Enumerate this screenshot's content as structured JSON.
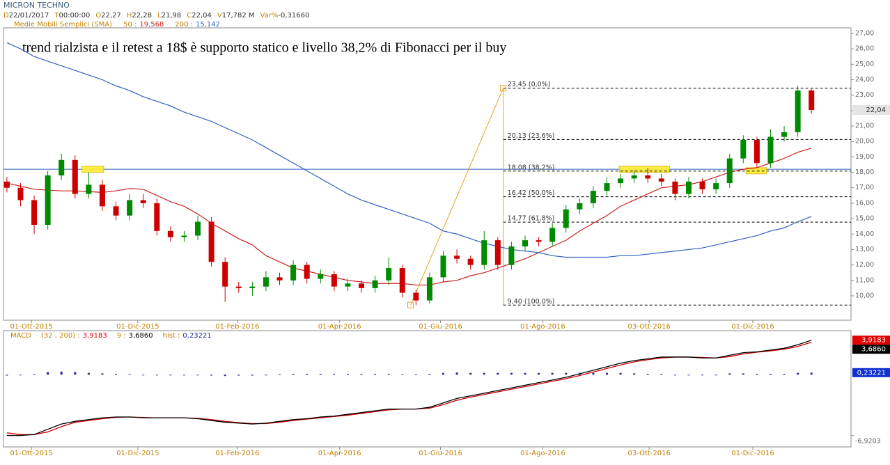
{
  "chart_data": [
    {
      "type": "candlestick",
      "title": "MICRON TECHNO",
      "info": [
        {
          "key": "D",
          "value": "22/01/2017"
        },
        {
          "key": "T",
          "value": "00:00:00"
        },
        {
          "key": "O",
          "value": "22,27"
        },
        {
          "key": "H",
          "value": "22,28"
        },
        {
          "key": "L",
          "value": "21,98"
        },
        {
          "key": "C",
          "value": "22,04"
        },
        {
          "key": "V",
          "value": "17,782 M"
        },
        {
          "key": "Var%",
          "value": "-0,31660"
        }
      ],
      "sma_label": "Medie Mobili Semplici (SMA)",
      "annotation": "trend rialzista e il retest a 18$ è supporto statico e livello 38,2% di Fibonacci per il buy",
      "up_color": "#008a00",
      "down_color": "#cc0000",
      "open": [
        17.4,
        17.0,
        16.2,
        14.6,
        17.8,
        18.8,
        16.6,
        17.2,
        15.8,
        15.2,
        16.2,
        16.0,
        14.2,
        13.8,
        13.9,
        14.8,
        12.2,
        10.6,
        10.5,
        10.6,
        11.2,
        11.0,
        12.0,
        11.1,
        11.4,
        10.6,
        10.8,
        10.5,
        11.0,
        11.8,
        10.2,
        9.7,
        11.2,
        12.6,
        12.4,
        12.0,
        13.6,
        12.0,
        13.2,
        13.6,
        13.5,
        14.4,
        15.6,
        16.0,
        16.8,
        17.3,
        17.6,
        17.8,
        17.6,
        17.4,
        16.6,
        17.4,
        16.9,
        17.3,
        18.9,
        20.1,
        18.6,
        20.3,
        20.6,
        23.3
      ],
      "high": [
        17.7,
        17.3,
        16.5,
        18.1,
        19.2,
        19.1,
        18.0,
        17.5,
        16.1,
        16.6,
        16.6,
        16.3,
        14.5,
        14.2,
        15.2,
        15.1,
        12.5,
        10.9,
        10.9,
        11.6,
        11.5,
        12.3,
        12.2,
        11.7,
        11.6,
        11.1,
        11.0,
        11.3,
        12.5,
        12.0,
        10.4,
        11.5,
        12.9,
        13.0,
        12.6,
        14.2,
        13.8,
        13.5,
        13.9,
        13.8,
        14.7,
        15.9,
        16.3,
        17.1,
        17.7,
        17.9,
        18.1,
        18.3,
        17.9,
        17.6,
        17.7,
        17.6,
        17.6,
        19.2,
        20.4,
        20.3,
        20.8,
        21.0,
        23.6,
        23.4
      ],
      "low": [
        16.7,
        15.8,
        14.0,
        14.3,
        17.5,
        16.3,
        16.3,
        15.5,
        14.9,
        14.9,
        15.7,
        13.9,
        13.5,
        13.5,
        13.6,
        11.9,
        9.6,
        10.2,
        10.0,
        10.3,
        10.7,
        10.7,
        10.8,
        10.8,
        10.3,
        10.3,
        10.2,
        10.2,
        10.7,
        9.9,
        9.4,
        9.5,
        10.9,
        12.1,
        11.7,
        11.7,
        11.7,
        11.7,
        12.9,
        13.2,
        13.2,
        14.1,
        15.3,
        15.7,
        16.5,
        17.0,
        17.3,
        17.3,
        17.1,
        16.2,
        16.3,
        16.6,
        16.6,
        17.0,
        18.6,
        18.3,
        18.3,
        20.0,
        20.3,
        21.8
      ],
      "close": [
        17.0,
        16.2,
        14.6,
        17.8,
        18.8,
        16.6,
        17.2,
        15.8,
        15.2,
        16.2,
        16.0,
        14.2,
        13.8,
        13.9,
        14.8,
        12.2,
        10.6,
        10.5,
        10.6,
        11.2,
        11.0,
        12.0,
        11.1,
        11.4,
        10.6,
        10.8,
        10.5,
        11.0,
        11.8,
        10.2,
        9.7,
        11.2,
        12.6,
        12.4,
        12.0,
        13.6,
        12.0,
        13.2,
        13.6,
        13.5,
        14.4,
        15.6,
        16.0,
        16.8,
        17.3,
        17.6,
        17.8,
        17.6,
        17.4,
        16.6,
        17.4,
        16.9,
        17.3,
        18.9,
        20.1,
        18.6,
        20.3,
        20.6,
        23.3,
        22.04
      ],
      "last_price": {
        "value": 22.04,
        "label": "22,04"
      },
      "series": [
        {
          "name": "50 :",
          "color": "#cc2020",
          "value_label": "19,568",
          "values": [
            17.3,
            17.1,
            16.9,
            16.85,
            16.8,
            16.8,
            16.75,
            16.7,
            16.8,
            16.95,
            16.9,
            16.5,
            16.1,
            15.8,
            15.3,
            14.7,
            14.2,
            13.7,
            13.3,
            12.6,
            12.2,
            11.8,
            11.6,
            11.4,
            11.2,
            11.0,
            10.9,
            10.8,
            10.8,
            10.8,
            10.7,
            10.7,
            10.9,
            11.0,
            11.3,
            11.5,
            11.8,
            12.1,
            12.4,
            12.8,
            13.2,
            13.6,
            14.2,
            14.7,
            15.2,
            15.8,
            16.2,
            16.6,
            17.0,
            17.1,
            17.2,
            17.4,
            17.7,
            18.0,
            18.2,
            18.3,
            18.6,
            18.9,
            19.3,
            19.568
          ]
        },
        {
          "name": "200 :",
          "color": "#3060c0",
          "value_label": "15,142",
          "values": [
            26.4,
            26.0,
            25.5,
            25.2,
            24.9,
            24.6,
            24.3,
            24.0,
            23.6,
            23.3,
            22.9,
            22.6,
            22.3,
            21.9,
            21.6,
            21.3,
            20.9,
            20.5,
            20.1,
            19.6,
            19.1,
            18.6,
            18.1,
            17.6,
            17.1,
            16.6,
            16.2,
            15.9,
            15.6,
            15.3,
            15.0,
            14.7,
            14.2,
            14.0,
            13.7,
            13.4,
            13.2,
            13.0,
            12.9,
            12.8,
            12.6,
            12.5,
            12.5,
            12.5,
            12.5,
            12.6,
            12.6,
            12.7,
            12.8,
            12.9,
            13.0,
            13.1,
            13.3,
            13.5,
            13.7,
            13.9,
            14.2,
            14.4,
            14.8,
            15.142
          ]
        }
      ],
      "support": 18.2,
      "support_color": "#3060c0",
      "highlights": [
        {
          "x": [
            5.5,
            7.1
          ],
          "y": [
            18.0,
            18.4
          ]
        },
        {
          "x": [
            44.9,
            48.6
          ],
          "y": [
            18.0,
            18.4
          ]
        },
        {
          "x": [
            54.2,
            55.7
          ],
          "y": [
            17.9,
            18.3
          ]
        }
      ],
      "fibonacci": {
        "x": [
          29.6,
          36.4
        ],
        "levels": [
          {
            "value": 23.45,
            "label": "23,45 (0,0%)"
          },
          {
            "value": 20.13,
            "label": "20,13 (23,6%)"
          },
          {
            "value": 18.08,
            "label": "18,08 (38,2%)"
          },
          {
            "value": 16.42,
            "label": "16,42 (50,0%)"
          },
          {
            "value": 14.77,
            "label": "14,77 (61,8%)"
          },
          {
            "value": 9.4,
            "label": "9,40 (100,0%)"
          }
        ]
      },
      "xlim": [
        -0.25,
        61.9
      ],
      "xticks": [
        {
          "value": 1.8,
          "label": "01-Ott-2015"
        },
        {
          "value": 9.6,
          "label": "01-Dic-2015"
        },
        {
          "value": 16.9,
          "label": "01-Feb-2016"
        },
        {
          "value": 24.4,
          "label": "01-Apr-2016"
        },
        {
          "value": 31.8,
          "label": "01-Giu-2016"
        },
        {
          "value": 39.3,
          "label": "01-Ago-2016"
        },
        {
          "value": 47.1,
          "label": "03-Ott-2016"
        },
        {
          "value": 54.7,
          "label": "01-Dic-2016"
        }
      ],
      "ylim": [
        8.42,
        27.36
      ],
      "yticks": [
        {
          "value": 10,
          "label": "10,00"
        },
        {
          "value": 11,
          "label": "11,00"
        },
        {
          "value": 12,
          "label": "12,00"
        },
        {
          "value": 13,
          "label": "13,00"
        },
        {
          "value": 14,
          "label": "14,00"
        },
        {
          "value": 15,
          "label": "15,00"
        },
        {
          "value": 16,
          "label": "16,00"
        },
        {
          "value": 17,
          "label": "17,00"
        },
        {
          "value": 18,
          "label": "18,00"
        },
        {
          "value": 19,
          "label": "19,00"
        },
        {
          "value": 20,
          "label": "20,00"
        },
        {
          "value": 21,
          "label": "21,00"
        },
        {
          "value": 22,
          "label": "22,00"
        },
        {
          "value": 23,
          "label": "23,00"
        },
        {
          "value": 24,
          "label": "24,00"
        },
        {
          "value": 25,
          "label": "25,00"
        },
        {
          "value": 26,
          "label": "26,00"
        },
        {
          "value": 27,
          "label": "27,00"
        }
      ]
    },
    {
      "type": "macd",
      "title": "MACD",
      "series": [
        {
          "name": "(32 , 200) :",
          "color": "#000000",
          "value_label": "3,9183",
          "label_color": "#e00000",
          "values": [
            -6.9,
            -6.9,
            -6.8,
            -6.2,
            -5.6,
            -5.3,
            -5.1,
            -4.9,
            -4.8,
            -4.8,
            -4.9,
            -4.9,
            -4.9,
            -4.9,
            -5.0,
            -5.2,
            -5.4,
            -5.5,
            -5.6,
            -5.5,
            -5.3,
            -5.1,
            -5.0,
            -4.8,
            -4.7,
            -4.5,
            -4.3,
            -4.1,
            -3.9,
            -3.9,
            -3.9,
            -3.7,
            -3.2,
            -2.7,
            -2.4,
            -2.1,
            -1.8,
            -1.5,
            -1.2,
            -0.9,
            -0.6,
            -0.3,
            0.1,
            0.5,
            0.9,
            1.3,
            1.6,
            1.8,
            2.0,
            2.0,
            2.0,
            1.9,
            1.9,
            2.2,
            2.5,
            2.6,
            2.8,
            3.0,
            3.4,
            3.9183
          ]
        },
        {
          "name": "9 :",
          "color": "#cc0000",
          "value_label": "3,6860",
          "label_color": "#000000",
          "values": [
            -6.6,
            -6.8,
            -6.8,
            -6.5,
            -5.9,
            -5.4,
            -5.2,
            -5.0,
            -4.85,
            -4.8,
            -4.85,
            -4.9,
            -4.9,
            -4.9,
            -4.95,
            -5.1,
            -5.3,
            -5.45,
            -5.55,
            -5.55,
            -5.4,
            -5.2,
            -5.05,
            -4.9,
            -4.75,
            -4.6,
            -4.4,
            -4.2,
            -4.0,
            -3.9,
            -3.9,
            -3.8,
            -3.4,
            -2.9,
            -2.55,
            -2.25,
            -1.95,
            -1.65,
            -1.35,
            -1.05,
            -0.75,
            -0.45,
            -0.1,
            0.3,
            0.7,
            1.1,
            1.45,
            1.7,
            1.9,
            2.0,
            2.0,
            1.95,
            1.9,
            2.05,
            2.35,
            2.55,
            2.7,
            2.9,
            3.2,
            3.686
          ]
        }
      ],
      "hist": {
        "name": "hist :",
        "color": "#2a2a9a",
        "value_label": "0,23221",
        "label_color": "#1030d0",
        "values": [
          -0.1,
          0.0,
          0.05,
          0.3,
          0.35,
          0.3,
          0.2,
          0.15,
          0.1,
          0.05,
          0.0,
          0.0,
          0.0,
          0.0,
          -0.05,
          -0.1,
          -0.15,
          -0.1,
          -0.1,
          -0.05,
          0.05,
          0.1,
          0.1,
          0.1,
          0.1,
          0.1,
          0.1,
          0.1,
          0.1,
          0.05,
          0.05,
          0.1,
          0.2,
          0.25,
          0.2,
          0.2,
          0.2,
          0.2,
          0.2,
          0.2,
          0.2,
          0.2,
          0.2,
          0.2,
          0.2,
          0.2,
          0.15,
          0.1,
          0.1,
          0.0,
          0.0,
          -0.05,
          0.0,
          0.15,
          0.15,
          0.1,
          0.1,
          0.1,
          0.2,
          0.23221
        ]
      },
      "min_label": {
        "value": -6.9203,
        "label": "-6,9203"
      },
      "xlim": [
        -0.25,
        61.9
      ],
      "ylim": [
        -8.2,
        5.0
      ]
    }
  ]
}
